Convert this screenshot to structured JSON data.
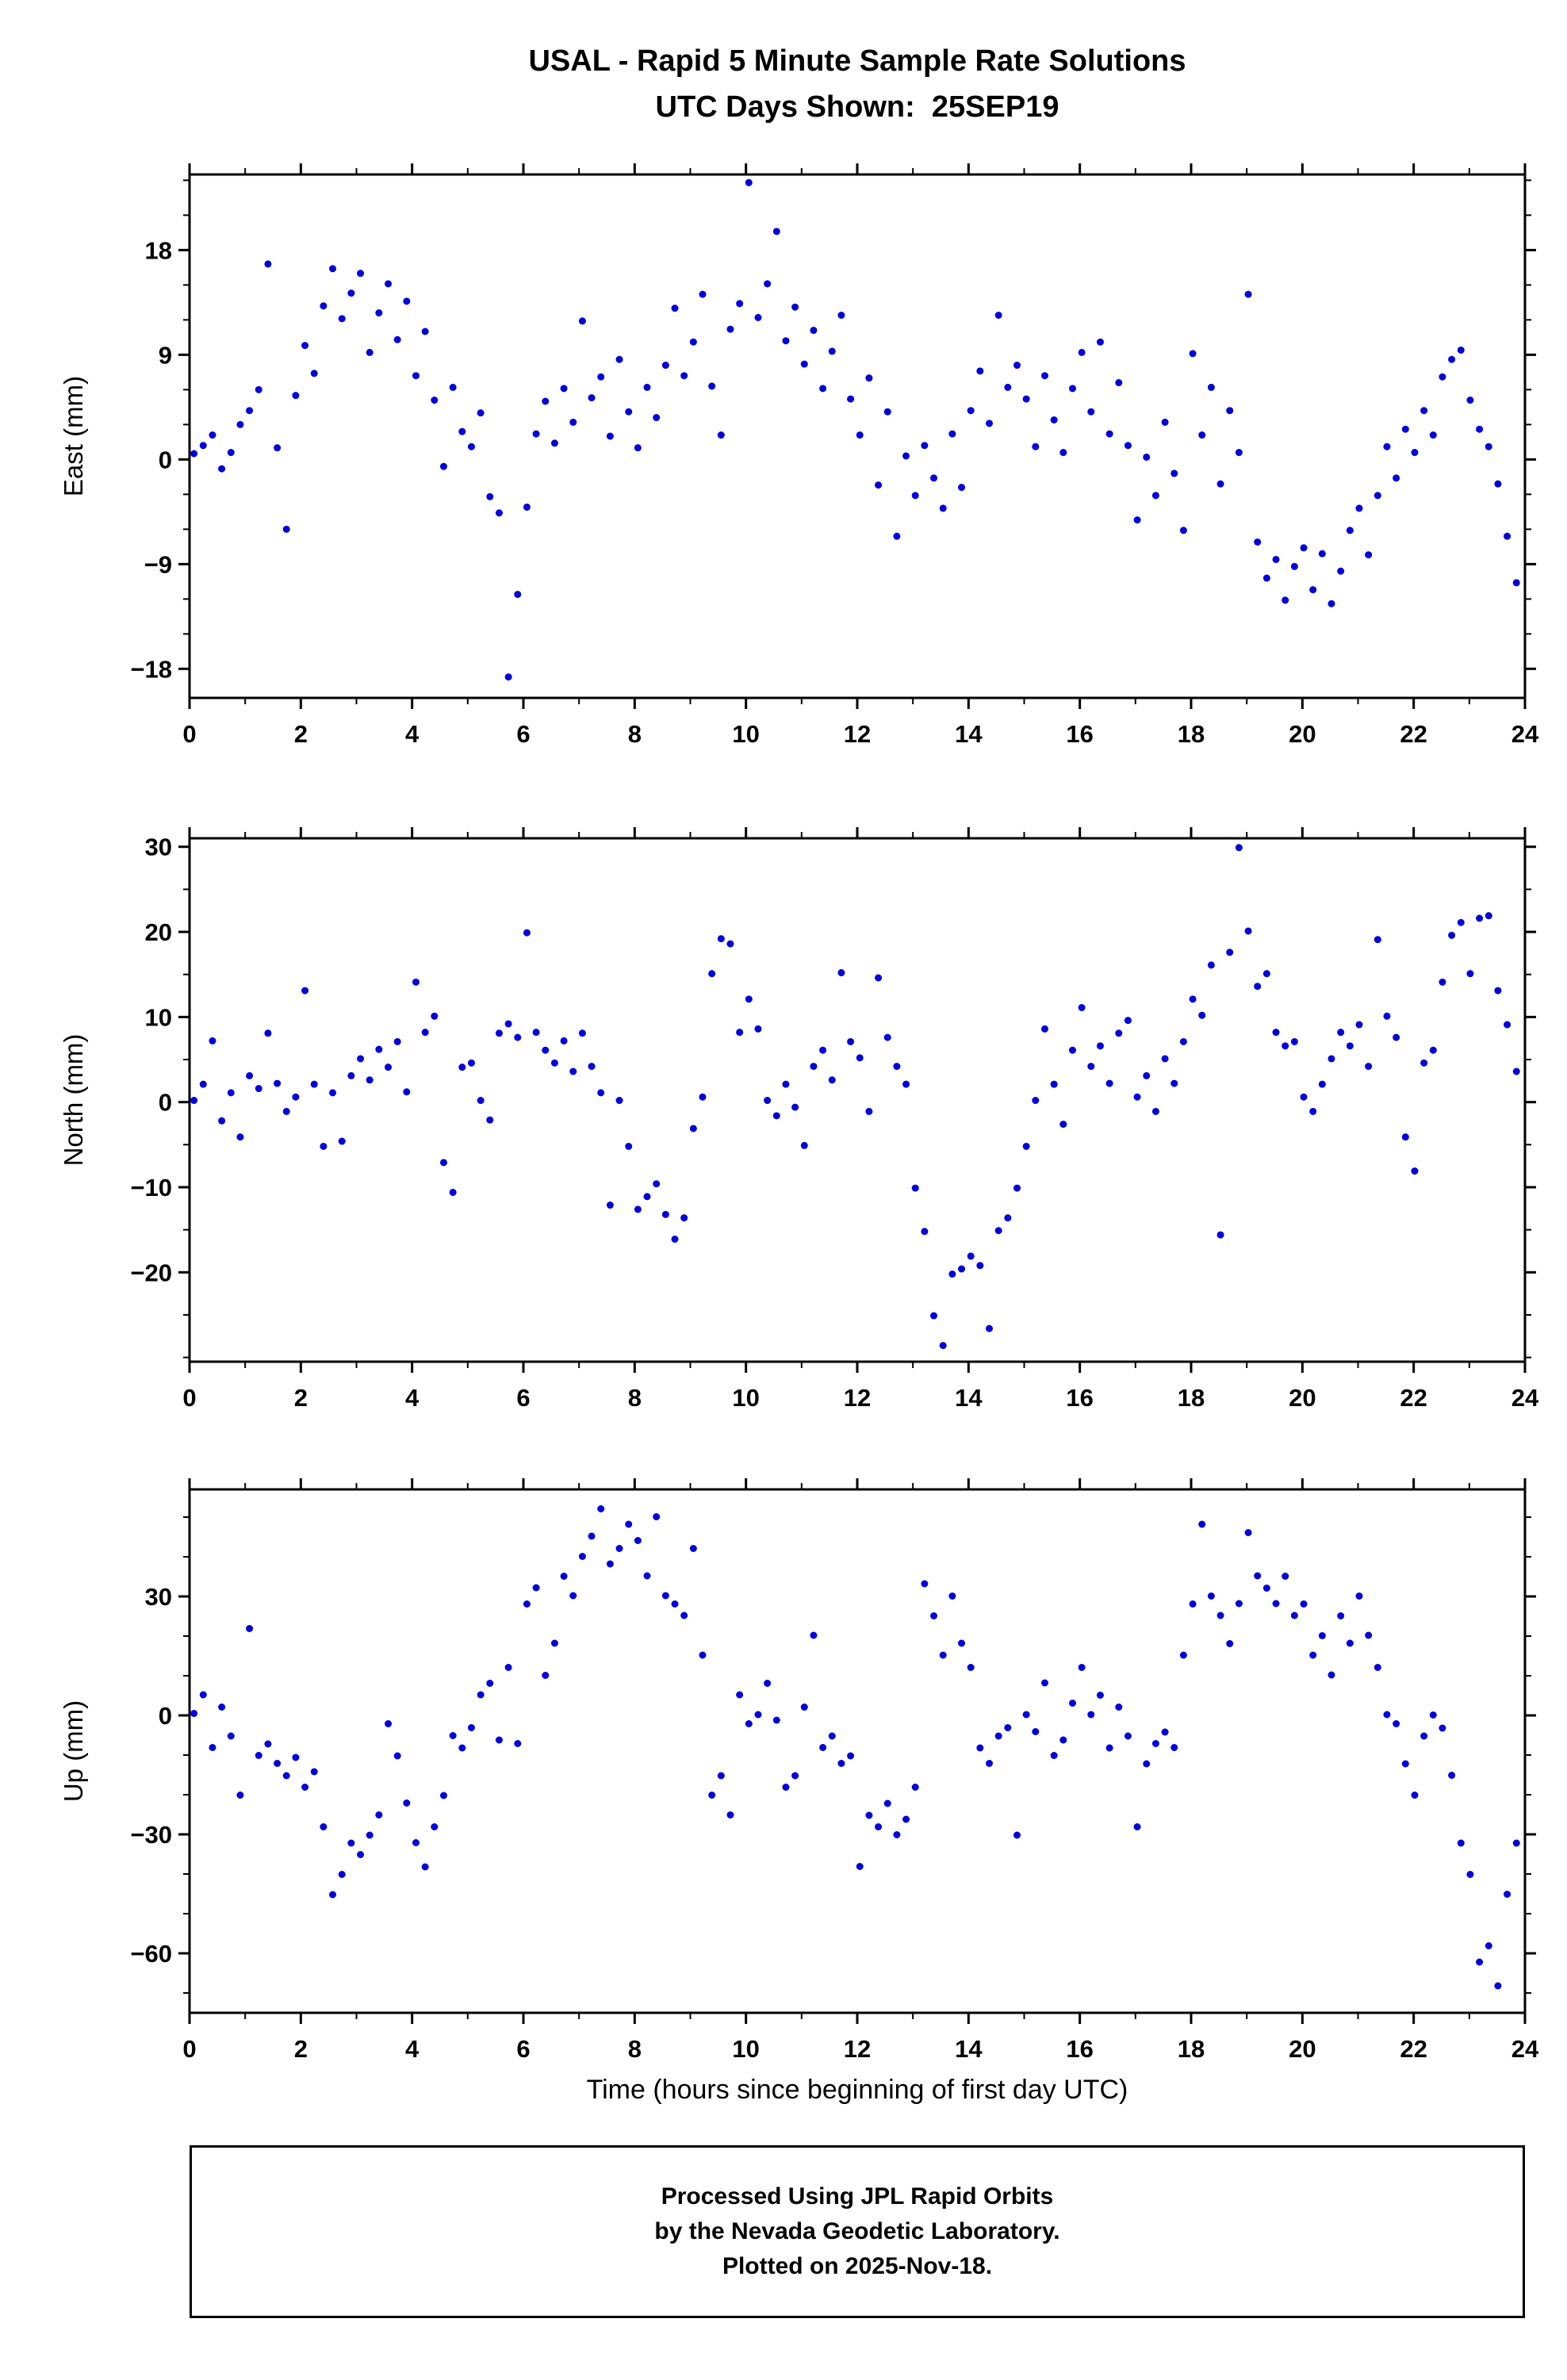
{
  "title": {
    "line1": "USAL - Rapid 5 Minute Sample Rate Solutions",
    "line2": "UTC Days Shown:  25SEP19"
  },
  "xlabel": "Time (hours since beginning of first day UTC)",
  "footer": {
    "line1": "Processed Using JPL Rapid Orbits",
    "line2": "by the Nevada Geodetic Laboratory.",
    "line3": "Plotted on 2025-Nov-18."
  },
  "style": {
    "point_color": "#0000dd",
    "frame_color": "#000000",
    "point_radius": 4.5,
    "tick_label_size": 31
  },
  "chart_data": [
    {
      "type": "scatter",
      "panel": "east",
      "ylabel": "East (mm)",
      "xlim": [
        0,
        24
      ],
      "ylim": [
        -20.5,
        24.5
      ],
      "xticks": [
        0,
        2,
        4,
        6,
        8,
        10,
        12,
        14,
        16,
        18,
        20,
        22,
        24
      ],
      "xtick_minor_step": 1,
      "yticks": [
        -18,
        -9,
        0,
        9,
        18
      ],
      "ytick_minor_step": 3,
      "grid": false,
      "points": {
        "x_start": 0.08,
        "x_step": 0.1662,
        "y": [
          0.5,
          1.2,
          2.1,
          -0.8,
          0.6,
          3.0,
          4.2,
          6.0,
          16.8,
          1.0,
          -6.0,
          5.5,
          9.8,
          7.4,
          13.2,
          16.4,
          12.1,
          14.3,
          16.0,
          9.2,
          12.6,
          15.1,
          10.3,
          13.6,
          7.2,
          11.0,
          5.1,
          -0.6,
          6.2,
          2.4,
          1.1,
          4.0,
          -3.2,
          -4.6,
          -18.7,
          -11.6,
          -4.1,
          2.2,
          5.0,
          1.4,
          6.1,
          3.2,
          11.9,
          5.3,
          7.1,
          2.0,
          8.6,
          4.1,
          1.0,
          6.2,
          3.6,
          8.1,
          13.0,
          7.2,
          10.1,
          14.2,
          6.3,
          2.1,
          11.2,
          13.4,
          23.8,
          12.2,
          15.1,
          19.6,
          10.2,
          13.1,
          8.2,
          11.1,
          6.1,
          9.3,
          12.4,
          5.2,
          2.1,
          7.0,
          -2.2,
          4.1,
          -6.6,
          0.3,
          -3.1,
          1.2,
          -1.6,
          -4.2,
          2.2,
          -2.4,
          4.2,
          7.6,
          3.1,
          12.4,
          6.2,
          8.1,
          5.2,
          1.1,
          7.2,
          3.4,
          0.6,
          6.1,
          9.2,
          4.1,
          10.1,
          2.2,
          6.6,
          1.2,
          -5.2,
          0.2,
          -3.1,
          3.2,
          -1.2,
          -6.1,
          9.1,
          2.1,
          6.2,
          -2.1,
          4.2,
          0.6,
          14.2,
          -7.1,
          -10.2,
          -8.6,
          -12.1,
          -9.2,
          -7.6,
          -11.2,
          -8.1,
          -12.4,
          -9.6,
          -6.1,
          -4.2,
          -8.2,
          -3.1,
          1.1,
          -1.6,
          2.6,
          0.6,
          4.2,
          2.1,
          7.1,
          8.6,
          9.4,
          5.1,
          2.6,
          1.1,
          -2.1,
          -6.6,
          -10.6
        ]
      }
    },
    {
      "type": "scatter",
      "panel": "north",
      "ylabel": "North (mm)",
      "xlim": [
        0,
        24
      ],
      "ylim": [
        -30.5,
        31
      ],
      "xticks": [
        0,
        2,
        4,
        6,
        8,
        10,
        12,
        14,
        16,
        18,
        20,
        22,
        24
      ],
      "xtick_minor_step": 1,
      "yticks": [
        -20,
        -10,
        0,
        10,
        20,
        30
      ],
      "ytick_minor_step": 5,
      "grid": false,
      "points": {
        "x_start": 0.08,
        "x_step": 0.1662,
        "y": [
          0.2,
          2.1,
          7.2,
          -2.2,
          1.1,
          -4.1,
          3.1,
          1.6,
          8.1,
          2.2,
          -1.1,
          0.6,
          13.1,
          2.1,
          -5.2,
          1.1,
          -4.6,
          3.1,
          5.1,
          2.6,
          6.2,
          4.1,
          7.1,
          1.2,
          14.1,
          8.2,
          10.1,
          -7.1,
          -10.6,
          4.1,
          4.6,
          0.2,
          -2.1,
          8.1,
          9.2,
          7.6,
          19.9,
          8.2,
          6.1,
          4.6,
          7.2,
          3.6,
          8.1,
          4.2,
          1.1,
          -12.1,
          0.2,
          -5.2,
          -12.6,
          -11.1,
          -9.6,
          -13.2,
          -16.1,
          -13.6,
          -3.1,
          0.6,
          15.1,
          19.2,
          18.6,
          8.2,
          12.1,
          8.6,
          0.2,
          -1.6,
          2.1,
          -0.6,
          -5.1,
          4.2,
          6.1,
          2.6,
          15.2,
          7.1,
          5.2,
          -1.1,
          14.6,
          7.6,
          4.2,
          2.1,
          -10.1,
          -15.2,
          -25.1,
          -28.6,
          -20.2,
          -19.6,
          -18.1,
          -19.2,
          -26.6,
          -15.1,
          -13.6,
          -10.1,
          -5.2,
          0.2,
          8.6,
          2.1,
          -2.6,
          6.1,
          11.1,
          4.2,
          6.6,
          2.2,
          8.1,
          9.6,
          0.6,
          3.1,
          -1.1,
          5.1,
          2.2,
          7.1,
          12.1,
          10.2,
          16.1,
          -15.6,
          17.6,
          29.9,
          20.1,
          13.6,
          15.1,
          8.2,
          6.6,
          7.1,
          0.6,
          -1.1,
          2.1,
          5.1,
          8.2,
          6.6,
          9.1,
          4.2,
          19.1,
          10.1,
          7.6,
          -4.1,
          -8.1,
          4.6,
          6.1,
          14.1,
          19.6,
          21.1,
          15.1,
          21.6,
          21.9,
          13.1,
          9.1,
          3.6
        ]
      }
    },
    {
      "type": "scatter",
      "panel": "up",
      "ylabel": "Up (mm)",
      "xlim": [
        0,
        24
      ],
      "ylim": [
        -75,
        57
      ],
      "xticks": [
        0,
        2,
        4,
        6,
        8,
        10,
        12,
        14,
        16,
        18,
        20,
        22,
        24
      ],
      "xtick_minor_step": 1,
      "yticks": [
        -60,
        -30,
        0,
        30
      ],
      "ytick_minor_step": 10,
      "grid": false,
      "points": {
        "x_start": 0.08,
        "x_step": 0.1662,
        "y": [
          0.5,
          5.2,
          -8.1,
          2.1,
          -5.2,
          -20.1,
          21.9,
          -10.1,
          -7.2,
          -12.1,
          -15.2,
          -10.6,
          -18.1,
          -14.2,
          -28.1,
          -45.2,
          -40.1,
          -32.2,
          -35.1,
          -30.2,
          -25.1,
          -2.1,
          -10.2,
          -22.1,
          -32.1,
          -38.2,
          -28.1,
          -20.2,
          -5.1,
          -8.2,
          -3.1,
          5.2,
          8.1,
          -6.2,
          12.1,
          -7.1,
          28.1,
          32.2,
          10.1,
          18.2,
          35.1,
          30.2,
          40.1,
          45.2,
          52.1,
          38.2,
          42.1,
          48.2,
          44.1,
          35.2,
          50.1,
          30.2,
          28.1,
          25.2,
          42.1,
          15.2,
          -20.1,
          -15.2,
          -25.1,
          5.2,
          -2.1,
          0.2,
          8.1,
          -1.2,
          -18.1,
          -15.2,
          2.1,
          20.2,
          -8.1,
          -5.2,
          -12.1,
          -10.2,
          -38.1,
          -25.2,
          -28.1,
          -22.2,
          -30.1,
          -26.2,
          -18.1,
          33.2,
          25.1,
          15.2,
          30.1,
          18.2,
          12.1,
          -8.2,
          -12.1,
          -5.2,
          -3.1,
          -30.2,
          0.2,
          -4.1,
          8.2,
          -10.1,
          -6.2,
          3.1,
          12.1,
          0.2,
          5.1,
          -8.2,
          2.1,
          -5.2,
          -28.1,
          -12.2,
          -7.1,
          -4.2,
          -8.1,
          15.2,
          28.1,
          48.2,
          30.1,
          25.2,
          18.1,
          28.2,
          46.1,
          35.2,
          32.1,
          28.2,
          35.1,
          25.2,
          28.1,
          15.2,
          20.1,
          10.2,
          25.1,
          18.2,
          30.1,
          20.2,
          12.1,
          0.2,
          -2.1,
          -12.2,
          -20.1,
          -5.2,
          0.1,
          -3.2,
          -15.1,
          -32.2,
          -40.1,
          -62.2,
          -58.1,
          -68.2,
          -45.1,
          -32.2
        ]
      }
    }
  ]
}
